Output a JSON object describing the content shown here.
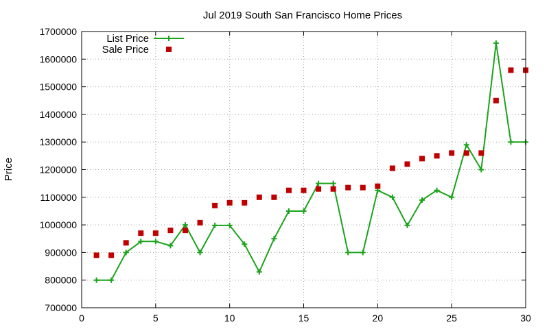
{
  "chart_data": {
    "type": "scatter",
    "title": "Jul 2019 South San Francisco Home Prices",
    "xlabel": "",
    "ylabel": "Price",
    "xlim": [
      0,
      30
    ],
    "ylim": [
      700000,
      1700000
    ],
    "x_ticks": [
      0,
      5,
      10,
      15,
      20,
      25,
      30
    ],
    "y_ticks": [
      700000,
      800000,
      900000,
      1000000,
      1100000,
      1200000,
      1300000,
      1400000,
      1500000,
      1600000,
      1700000
    ],
    "legend_position": "top-left",
    "series": [
      {
        "name": "List Price",
        "style": "linespoints",
        "marker": "plus",
        "color": "#1aa31a",
        "x": [
          1,
          2,
          3,
          4,
          5,
          6,
          7,
          8,
          9,
          10,
          11,
          12,
          13,
          14,
          15,
          16,
          17,
          18,
          19,
          20,
          21,
          22,
          23,
          24,
          25,
          26,
          27,
          28,
          29,
          30
        ],
        "y": [
          800000,
          800000,
          900000,
          940000,
          940000,
          925000,
          1000000,
          900000,
          998000,
          998000,
          930000,
          830000,
          950000,
          1050000,
          1050000,
          1150000,
          1150000,
          900000,
          900000,
          1125000,
          1100000,
          998000,
          1090000,
          1125000,
          1100000,
          1290000,
          1200000,
          1658000,
          1300000,
          1300000
        ]
      },
      {
        "name": "Sale Price",
        "style": "points",
        "marker": "square",
        "color": "#c00000",
        "x": [
          1,
          2,
          3,
          4,
          5,
          6,
          7,
          8,
          9,
          10,
          11,
          12,
          13,
          14,
          15,
          16,
          17,
          18,
          19,
          20,
          21,
          22,
          23,
          24,
          25,
          26,
          27,
          28,
          29,
          30
        ],
        "y": [
          890000,
          890000,
          935000,
          970000,
          970000,
          980000,
          980000,
          1008000,
          1070000,
          1080000,
          1080000,
          1100000,
          1100000,
          1125000,
          1125000,
          1130000,
          1130000,
          1135000,
          1135000,
          1140000,
          1205000,
          1220000,
          1240000,
          1250000,
          1260000,
          1260000,
          1260000,
          1450000,
          1560000,
          1560000
        ]
      }
    ]
  }
}
